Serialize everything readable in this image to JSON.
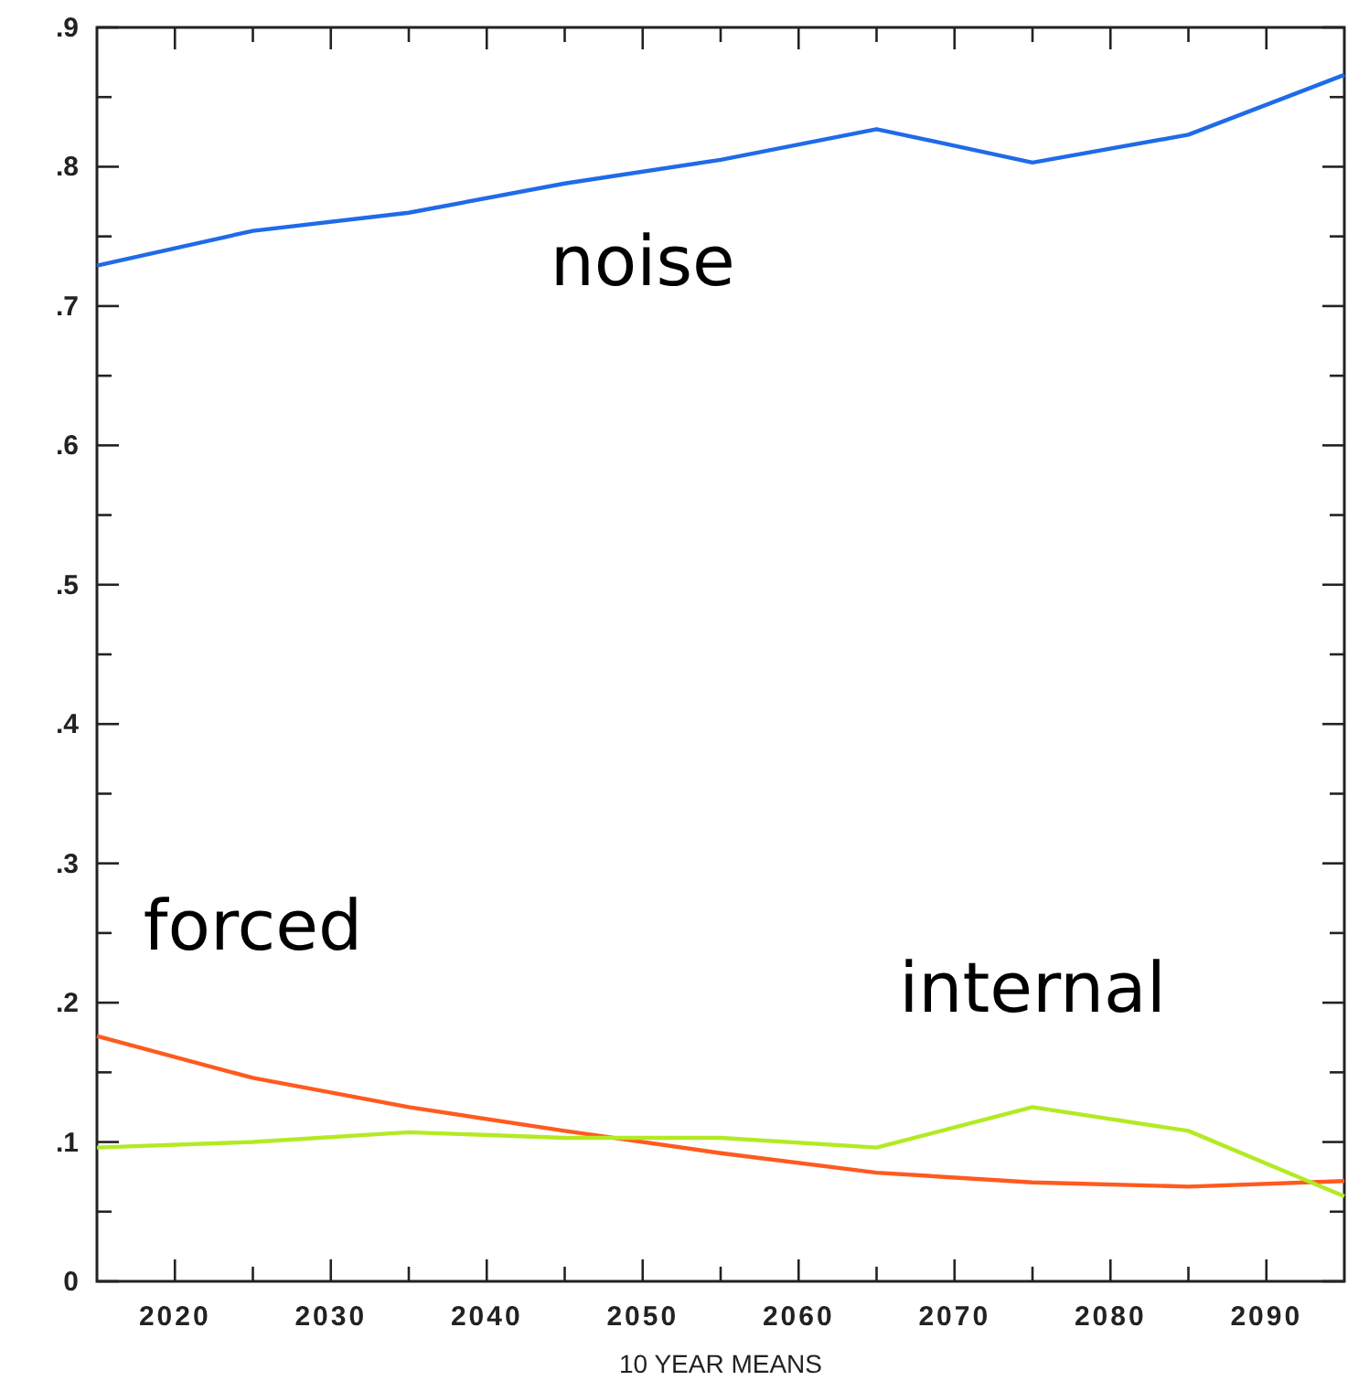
{
  "chart_data": {
    "type": "line",
    "xlabel": "10 YEAR MEANS",
    "x": [
      2015,
      2025,
      2035,
      2045,
      2055,
      2065,
      2075,
      2085,
      2095
    ],
    "series": [
      {
        "name": "noise",
        "color": "#1f6be8",
        "values": [
          0.729,
          0.754,
          0.767,
          0.788,
          0.805,
          0.827,
          0.803,
          0.823,
          0.866
        ]
      },
      {
        "name": "forced",
        "color": "#ff5a1f",
        "values": [
          0.176,
          0.146,
          0.125,
          0.108,
          0.092,
          0.078,
          0.071,
          0.068,
          0.072
        ]
      },
      {
        "name": "internal",
        "color": "#b3ea23",
        "values": [
          0.096,
          0.1,
          0.107,
          0.103,
          0.103,
          0.096,
          0.125,
          0.108,
          0.061
        ]
      }
    ],
    "xlim": [
      2015,
      2095
    ],
    "xticks": [
      2020,
      {
        "value": 2025,
        "label": null
      },
      2030,
      {
        "value": 2035,
        "label": null
      },
      2040,
      {
        "value": 2045,
        "label": null
      },
      2050,
      {
        "value": 2055,
        "label": null
      },
      2060,
      {
        "value": 2065,
        "label": null
      },
      2070,
      {
        "value": 2075,
        "label": null
      },
      2080,
      {
        "value": 2085,
        "label": null
      },
      2090
    ],
    "ylim": [
      0,
      0.9
    ],
    "yticks": [
      0,
      {
        "value": 0.05,
        "label": null
      },
      {
        "value": 0.1,
        "label": ".1"
      },
      {
        "value": 0.15,
        "label": null
      },
      {
        "value": 0.2,
        "label": ".2"
      },
      {
        "value": 0.25,
        "label": null
      },
      {
        "value": 0.3,
        "label": ".3"
      },
      {
        "value": 0.35,
        "label": null
      },
      {
        "value": 0.4,
        "label": ".4"
      },
      {
        "value": 0.45,
        "label": null
      },
      {
        "value": 0.5,
        "label": ".5"
      },
      {
        "value": 0.55,
        "label": null
      },
      {
        "value": 0.6,
        "label": ".6"
      },
      {
        "value": 0.65,
        "label": null
      },
      {
        "value": 0.7,
        "label": ".7"
      },
      {
        "value": 0.75,
        "label": null
      },
      {
        "value": 0.8,
        "label": ".8"
      },
      {
        "value": 0.85,
        "label": null
      },
      {
        "value": 0.9,
        "label": ".9"
      }
    ],
    "grid": false,
    "marker": "none",
    "line_style": "solid"
  }
}
